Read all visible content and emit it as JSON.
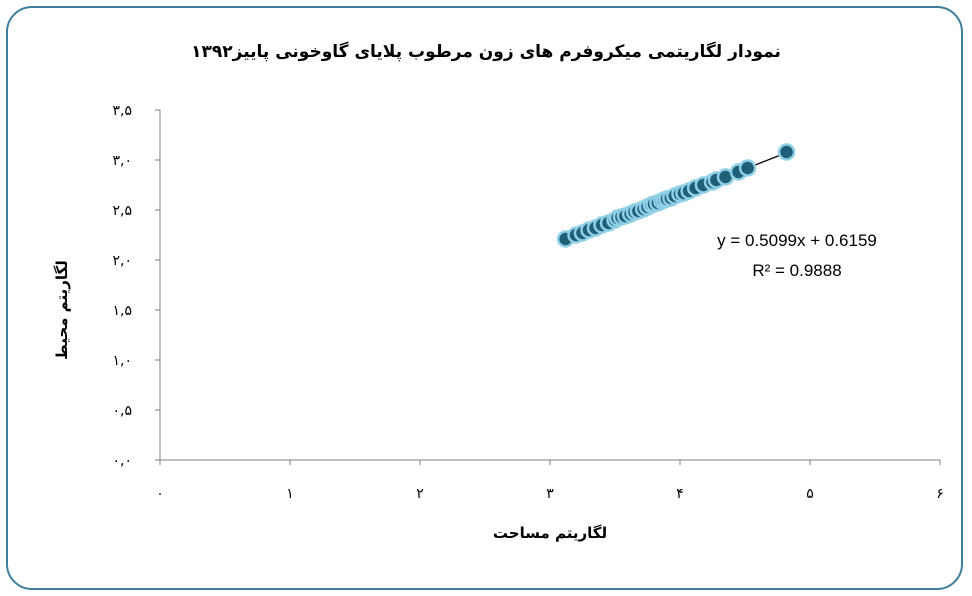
{
  "chart_data": {
    "type": "scatter",
    "title": "نمودار لگاریتمی میکروفرم های زون مرطوب پلایای گاوخونی پاییز۱۳۹۲",
    "xlabel": "لگاریتم مساحت",
    "ylabel": "لگاریتم محیط",
    "xlim": [
      0,
      6
    ],
    "ylim": [
      0,
      3.5
    ],
    "x_ticks": [
      0,
      1,
      2,
      3,
      4,
      5,
      6
    ],
    "x_tick_labels": [
      "۰",
      "۱",
      "۲",
      "۳",
      "۴",
      "۵",
      "۶"
    ],
    "y_ticks": [
      0,
      0.5,
      1,
      1.5,
      2,
      2.5,
      3,
      3.5
    ],
    "y_tick_labels": [
      "۰,۰",
      "۰,۵",
      "۱,۰",
      "۱,۵",
      "۲,۰",
      "۲,۵",
      "۳,۰",
      "۳,۵"
    ],
    "grid": false,
    "marker_color": "#1f5f78",
    "marker_edge_color": "#8fd0e6",
    "trendline": {
      "slope": 0.5099,
      "intercept": 0.6159,
      "x_range": [
        3.12,
        4.85
      ],
      "equation_text": "y = 0.5099x + 0.6159",
      "r2_text": "R² = 0.9888"
    },
    "points": [
      [
        3.12,
        2.21
      ],
      [
        3.2,
        2.25
      ],
      [
        3.25,
        2.27
      ],
      [
        3.3,
        2.3
      ],
      [
        3.35,
        2.32
      ],
      [
        3.4,
        2.35
      ],
      [
        3.45,
        2.37
      ],
      [
        3.5,
        2.4
      ],
      [
        3.52,
        2.42
      ],
      [
        3.55,
        2.43
      ],
      [
        3.58,
        2.44
      ],
      [
        3.62,
        2.46
      ],
      [
        3.65,
        2.48
      ],
      [
        3.68,
        2.49
      ],
      [
        3.72,
        2.51
      ],
      [
        3.75,
        2.53
      ],
      [
        3.78,
        2.55
      ],
      [
        3.8,
        2.56
      ],
      [
        3.83,
        2.57
      ],
      [
        3.86,
        2.59
      ],
      [
        3.88,
        2.6
      ],
      [
        3.9,
        2.61
      ],
      [
        3.93,
        2.62
      ],
      [
        3.96,
        2.64
      ],
      [
        4.0,
        2.66
      ],
      [
        4.03,
        2.67
      ],
      [
        4.07,
        2.69
      ],
      [
        4.12,
        2.72
      ],
      [
        4.18,
        2.75
      ],
      [
        4.25,
        2.78
      ],
      [
        4.28,
        2.8
      ],
      [
        4.35,
        2.83
      ],
      [
        4.45,
        2.88
      ],
      [
        4.52,
        2.92
      ],
      [
        4.82,
        3.08
      ]
    ]
  }
}
